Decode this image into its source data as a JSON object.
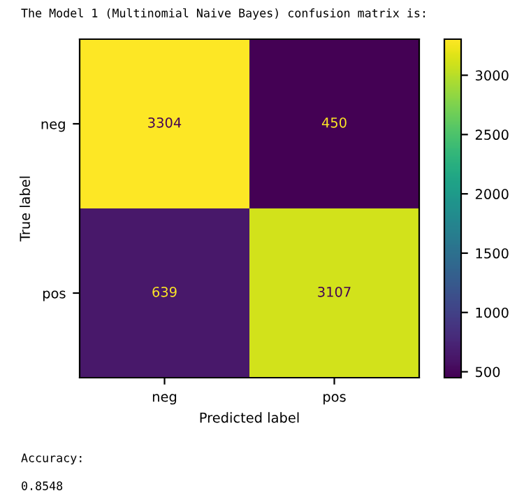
{
  "chart_data": {
    "type": "heatmap",
    "title": "The Model 1 (Multinomial Naive Bayes) confusion matrix is:",
    "xlabel": "Predicted label",
    "ylabel": "True label",
    "categories": [
      "neg",
      "pos"
    ],
    "y_categories": [
      "neg",
      "pos"
    ],
    "cells": [
      [
        3304,
        450
      ],
      [
        639,
        3107
      ]
    ],
    "data_labels": true,
    "clim": [
      450,
      3304
    ],
    "cticks": [
      500,
      1000,
      1500,
      2000,
      2500,
      3000
    ],
    "annotations": [
      "Accuracy:",
      "0.8548"
    ]
  }
}
